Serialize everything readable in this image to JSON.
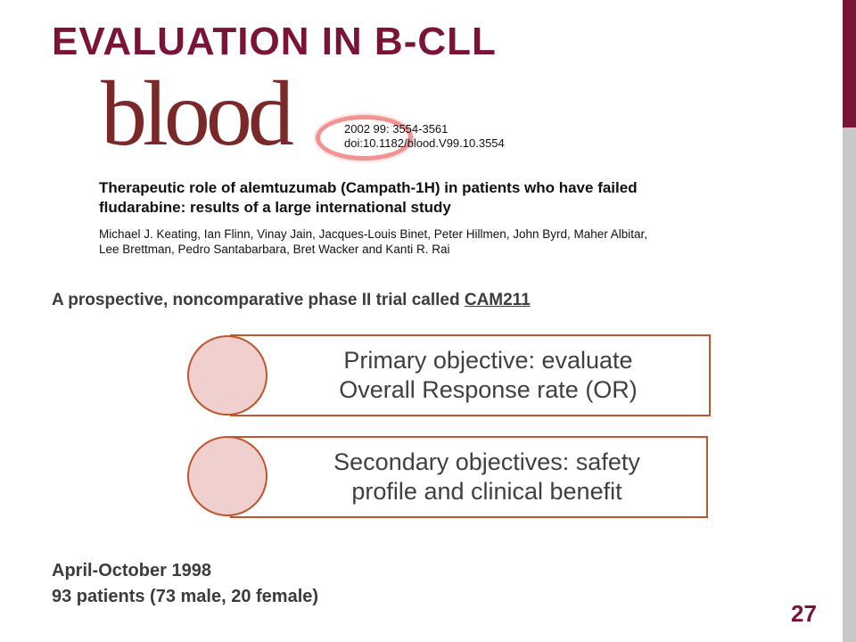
{
  "slide": {
    "title": "EVALUATION IN B-CLL",
    "page_number": "27",
    "accent_color": "#7a1435",
    "sidebar_gray": "#c8c8c8"
  },
  "paper": {
    "journal_logo": "blood",
    "citation_line1": "2002 99: 3554-3561",
    "citation_line2": "doi:10.1182/blood.V99.10.3554",
    "title_line1": "Therapeutic role of alemtuzumab (Campath-1H) in patients who have failed",
    "title_line2": "fludarabine: results of a large international study",
    "authors_line1": "Michael J. Keating, Ian Flinn, Vinay Jain, Jacques-Louis Binet, Peter Hillmen, John Byrd, Maher Albitar,",
    "authors_line2": "Lee Brettman, Pedro Santabarbara, Bret Wacker and Kanti R. Rai"
  },
  "trial": {
    "prefix": "A prospective, noncomparative phase II trial called ",
    "name": "CAM211"
  },
  "objectives": [
    {
      "line1": "Primary objective: evaluate",
      "line2": "Overall Response rate (OR)"
    },
    {
      "line1": "Secondary objectives: safety",
      "line2": "profile and clinical benefit"
    }
  ],
  "study_info": {
    "period": "April-October 1998",
    "patients": "93 patients (73 male, 20 female)"
  },
  "colors": {
    "box_border": "#c1552c",
    "circle_fill": "#f0cfcf",
    "highlight_ring": "#ee6e6e",
    "logo": "#7a2828"
  }
}
